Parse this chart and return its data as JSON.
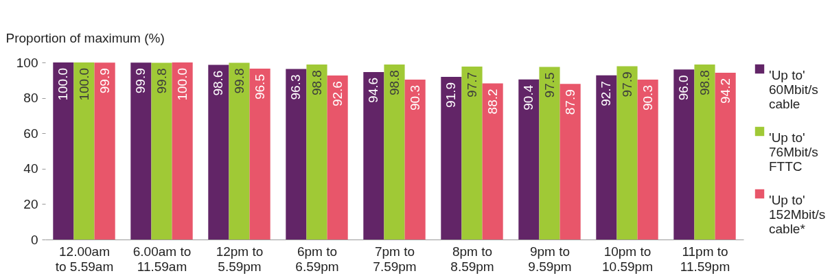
{
  "chart_data": {
    "type": "bar",
    "ylabel": "Proportion of maximum (%)",
    "categories": [
      "12.00am to 5.59am",
      "6.00am to 11.59am",
      "12pm to 5.59pm",
      "6pm to 6.59pm",
      "7pm to 7.59pm",
      "8pm to 8.59pm",
      "9pm to 9.59pm",
      "10pm to 10.59pm",
      "11pm to 11.59pm"
    ],
    "series": [
      {
        "name": "'Up to' 60Mbit/s cable",
        "color": "#622567",
        "values": [
          100.0,
          99.9,
          98.6,
          96.3,
          94.6,
          91.9,
          90.4,
          92.7,
          96.0
        ],
        "value_labels": [
          "100.0",
          "99.9",
          "98.6",
          "96.3",
          "94.6",
          "91.9",
          "90.4",
          "92.7",
          "96.0"
        ]
      },
      {
        "name": "'Up to' 76Mbit/s FTTC",
        "color": "#a0c936",
        "values": [
          100.0,
          99.8,
          99.8,
          98.8,
          98.8,
          97.7,
          97.5,
          97.9,
          98.8
        ],
        "value_labels": [
          "100.0",
          "99.8",
          "99.8",
          "98.8",
          "98.8",
          "97.7",
          "97.5",
          "97.9",
          "98.8"
        ]
      },
      {
        "name": "'Up to' 152Mbit/s cable*",
        "color": "#e8566a",
        "values": [
          99.9,
          100.0,
          96.5,
          92.6,
          90.3,
          88.2,
          87.9,
          90.3,
          94.2
        ],
        "value_labels": [
          "99.9",
          "100.0",
          "96.5",
          "92.6",
          "90.3",
          "88.2",
          "87.9",
          "90.3",
          "94.2"
        ]
      }
    ],
    "ylim": [
      0,
      100
    ],
    "yticks": [
      0,
      20,
      40,
      60,
      80,
      100
    ],
    "grid": false,
    "legend": "right"
  }
}
